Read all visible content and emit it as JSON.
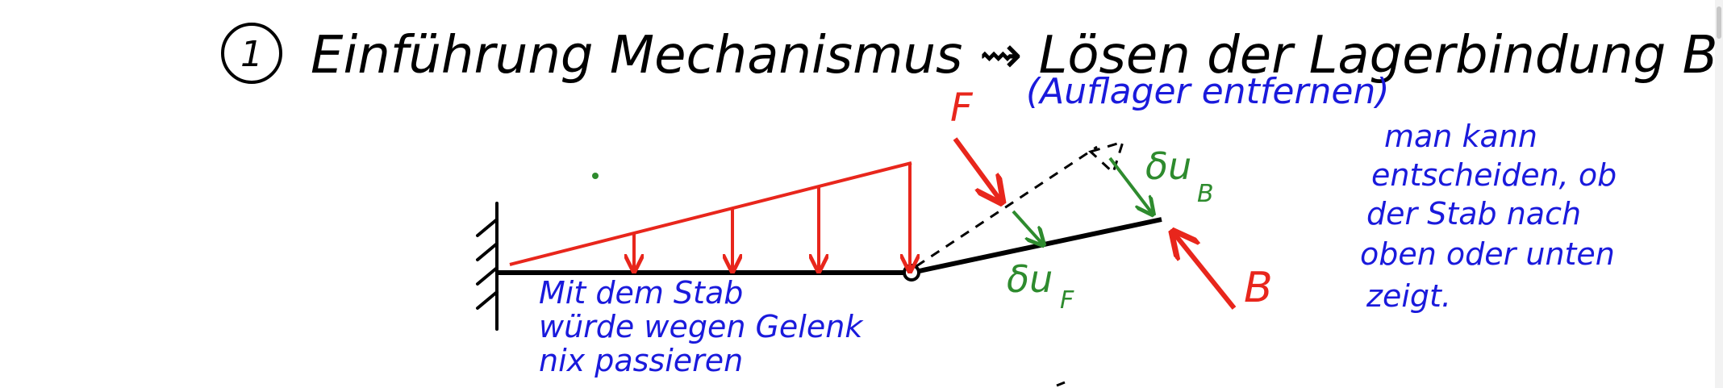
{
  "title": {
    "number": "1",
    "text": "Einführung Mechanismus ⇝ Lösen der Lagerbindung B",
    "subtitle": "(Auflager entfernen)"
  },
  "labels": {
    "force_f": "F",
    "force_b": "B",
    "disp_b": "δu",
    "disp_b_sub": "B",
    "disp_f": "δu",
    "disp_f_sub": "F"
  },
  "notes": {
    "left": [
      "Mit dem Stab",
      "würde wegen Gelenk",
      "nix passieren"
    ],
    "right": [
      "man kann",
      "entscheiden, ob",
      "der Stab nach",
      "oben oder unten",
      "zeigt."
    ]
  },
  "colors": {
    "black": "#000000",
    "red": "#e8261c",
    "blue": "#1a1adc",
    "green": "#2e8b2e"
  }
}
